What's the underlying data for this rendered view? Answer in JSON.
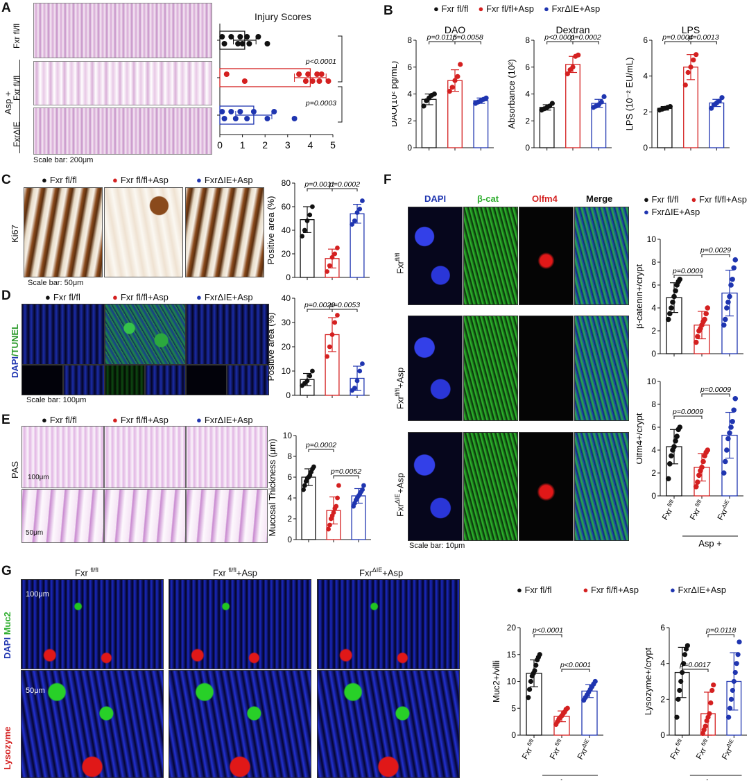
{
  "panels": {
    "a": "A",
    "b": "B",
    "c": "C",
    "d": "D",
    "e": "E",
    "f": "F",
    "g": "G"
  },
  "colors": {
    "control": "#111111",
    "asp": "#d42020",
    "ko": "#1f35b0"
  },
  "groups": {
    "ctrl": "Fxr fl/fl",
    "asp": "Fxr fl/fl+Asp",
    "ko": "FxrΔIE+Asp",
    "ctrl_sup": "fl/fl",
    "ko_sup": "ΔIE",
    "fxr": "Fxr",
    "plus_asp": "+Asp",
    "asp_plus": "Asp +"
  },
  "panel_a": {
    "title": "Injury Scores",
    "row_labels": [
      "Fxr fl/fl",
      "Fxr fl/fl",
      "FxrΔIE"
    ],
    "side_label": "Asp +",
    "scale": "Scale bar: 200μm",
    "pvals": [
      "p<0.0001",
      "p=0.0003"
    ]
  },
  "panel_c": {
    "stain": "Ki67",
    "scale": "Scale bar: 50μm",
    "pvals": [
      "p=0.0011",
      "p=0.0002"
    ],
    "ylabel": "Positive area (%)"
  },
  "panel_d": {
    "stain_a": "DAPI",
    "stain_b": "/TUNEL",
    "scale": "Scale bar: 100μm",
    "pvals": [
      "p=0.0020",
      "p=0.0053"
    ],
    "ylabel": "Positive area (%)"
  },
  "panel_e": {
    "stain": "PAS",
    "scale_top": "100μm",
    "scale_bot": "50μm",
    "pvals": [
      "p=0.0002",
      "p=0.0052"
    ],
    "ylabel": "Mucosal Thickness (μm)"
  },
  "panel_f": {
    "channels": [
      "DAPI",
      "β-cat",
      "Olfm4",
      "Merge"
    ],
    "scale": "Scale bar: 10μm",
    "pvals_bcat": [
      "p=0.0009",
      "p=0.0029"
    ],
    "pvals_olfm": [
      "p=0.0009",
      "p=0.0009"
    ],
    "ylabel_bcat": "β-catenin+/crypt",
    "ylabel_olfm": "Olfm4+/crypt"
  },
  "panel_g": {
    "stain_muc": "Muc2",
    "stain_dapi": "DAPI",
    "stain_lys": "Lysozyme",
    "scale_top": "100μm",
    "scale_bot": "50μm",
    "muc_title": "Muc2",
    "lys_title": "Lysozyme",
    "pvals_muc": [
      "p<0.0001",
      "p<0.0001"
    ],
    "pvals_lys": [
      "p=0.0017",
      "p=0.0118"
    ],
    "ylabel_muc": "Muc2+/villi",
    "ylabel_lys": "Lysozyme+/crypt"
  },
  "panel_b": {
    "dao": {
      "title": "DAO",
      "ylabel": "DAO(10² pg/mL)",
      "pvals": [
        "p=0.0115",
        "p=0.0058"
      ]
    },
    "dex": {
      "title": "Dextran",
      "ylabel": "Absorbance (10²)",
      "pvals": [
        "p<0.0001",
        "p=0.0002"
      ]
    },
    "lps": {
      "title": "LPS",
      "ylabel": "LPS (10⁻² EU/mL)",
      "pvals": [
        "p=0.0004",
        "p=0.0013"
      ]
    }
  },
  "chart_data": [
    {
      "id": "injury",
      "type": "bar",
      "orientation": "horizontal",
      "title": "Injury Scores",
      "xlim": [
        0,
        5
      ],
      "xticks": [
        0,
        1,
        2,
        3,
        4,
        5
      ],
      "series": [
        {
          "name": "Fxr fl/fl",
          "mean": 1.1,
          "sd": 0.5,
          "points": [
            0.1,
            0.2,
            0.5,
            0.8,
            0.9,
            1.0,
            1.2,
            1.3,
            1.7,
            2.1
          ]
        },
        {
          "name": "Fxr fl/fl+Asp",
          "mean": 4.0,
          "sd": 0.7,
          "points": [
            0.3,
            1.1,
            3.5,
            3.8,
            3.9,
            4.1,
            4.3,
            4.4,
            4.5,
            4.8
          ]
        },
        {
          "name": "FxrΔIE+Asp",
          "mean": 1.5,
          "sd": 0.8,
          "points": [
            0.1,
            0.2,
            0.5,
            0.7,
            0.9,
            1.2,
            1.5,
            2.1,
            2.4,
            3.3
          ]
        }
      ]
    },
    {
      "id": "dao",
      "type": "bar",
      "title": "DAO",
      "ylabel": "DAO(10² pg/mL)",
      "ylim": [
        0,
        8
      ],
      "yticks": [
        0,
        2,
        4,
        6,
        8
      ],
      "series": [
        {
          "name": "Fxr fl/fl",
          "mean": 3.6,
          "sd": 0.4,
          "points": [
            3.1,
            3.5,
            3.7,
            3.9,
            4.0
          ]
        },
        {
          "name": "Fxr fl/fl+Asp",
          "mean": 5.0,
          "sd": 0.8,
          "points": [
            4.2,
            4.5,
            5.0,
            5.3,
            6.2
          ]
        },
        {
          "name": "FxrΔIE+Asp",
          "mean": 3.5,
          "sd": 0.2,
          "points": [
            3.3,
            3.4,
            3.5,
            3.6,
            3.7
          ]
        }
      ]
    },
    {
      "id": "dextran",
      "type": "bar",
      "title": "Dextran",
      "ylabel": "Absorbance (10²)",
      "ylim": [
        0,
        8
      ],
      "yticks": [
        0,
        2,
        4,
        6,
        8
      ],
      "series": [
        {
          "name": "Fxr fl/fl",
          "mean": 3.0,
          "sd": 0.2,
          "points": [
            2.8,
            2.9,
            3.0,
            3.1,
            3.3
          ]
        },
        {
          "name": "Fxr fl/fl+Asp",
          "mean": 6.2,
          "sd": 0.6,
          "points": [
            5.5,
            5.8,
            6.0,
            6.8,
            6.9
          ]
        },
        {
          "name": "FxrΔIE+Asp",
          "mean": 3.3,
          "sd": 0.3,
          "points": [
            3.0,
            3.1,
            3.2,
            3.4,
            3.8
          ]
        }
      ]
    },
    {
      "id": "lps",
      "type": "bar",
      "title": "LPS",
      "ylabel": "LPS (10⁻² EU/mL)",
      "ylim": [
        0,
        6
      ],
      "yticks": [
        0,
        2,
        4,
        6
      ],
      "series": [
        {
          "name": "Fxr fl/fl",
          "mean": 2.2,
          "sd": 0.1,
          "points": [
            2.1,
            2.15,
            2.2,
            2.25,
            2.3
          ]
        },
        {
          "name": "Fxr fl/fl+Asp",
          "mean": 4.5,
          "sd": 0.7,
          "points": [
            3.5,
            4.2,
            4.5,
            4.9,
            5.2
          ]
        },
        {
          "name": "FxrΔIE+Asp",
          "mean": 2.5,
          "sd": 0.2,
          "points": [
            2.2,
            2.4,
            2.5,
            2.6,
            2.8
          ]
        }
      ]
    },
    {
      "id": "ki67",
      "type": "bar",
      "ylabel": "Positive area (%)",
      "ylim": [
        0,
        80
      ],
      "yticks": [
        0,
        20,
        40,
        60,
        80
      ],
      "series": [
        {
          "name": "Fxr fl/fl",
          "mean": 49,
          "sd": 11,
          "points": [
            35,
            40,
            48,
            53,
            60
          ]
        },
        {
          "name": "Fxr fl/fl+Asp",
          "mean": 16,
          "sd": 8,
          "points": [
            5,
            10,
            17,
            20,
            25
          ]
        },
        {
          "name": "FxrΔIE+Asp",
          "mean": 54,
          "sd": 8,
          "points": [
            45,
            48,
            55,
            58,
            65
          ]
        }
      ]
    },
    {
      "id": "tunel",
      "type": "bar",
      "ylabel": "Positive area (%)",
      "ylim": [
        0,
        40
      ],
      "yticks": [
        0,
        10,
        20,
        30,
        40
      ],
      "series": [
        {
          "name": "Fxr fl/fl",
          "mean": 6.5,
          "sd": 2.5,
          "points": [
            4,
            5,
            6,
            8,
            10
          ]
        },
        {
          "name": "Fxr fl/fl+Asp",
          "mean": 25,
          "sd": 7,
          "points": [
            16,
            20,
            25,
            30,
            33
          ]
        },
        {
          "name": "FxrΔIE+Asp",
          "mean": 7,
          "sd": 5,
          "points": [
            2,
            3,
            6,
            10,
            13
          ]
        }
      ]
    },
    {
      "id": "mucosal",
      "type": "bar",
      "ylabel": "Mucosal Thickness (μm)",
      "ylim": [
        0,
        10
      ],
      "yticks": [
        0,
        2,
        4,
        6,
        8,
        10
      ],
      "series": [
        {
          "name": "Fxr fl/fl",
          "mean": 6.0,
          "sd": 0.8,
          "points": [
            4.8,
            5.2,
            5.6,
            5.9,
            6.0,
            6.2,
            6.5,
            6.8,
            7.0
          ]
        },
        {
          "name": "Fxr fl/fl+Asp",
          "mean": 2.8,
          "sd": 1.3,
          "points": [
            1.0,
            1.4,
            2.0,
            2.3,
            2.6,
            3.0,
            3.2,
            4.0,
            5.2
          ]
        },
        {
          "name": "FxrΔIE+Asp",
          "mean": 4.2,
          "sd": 0.7,
          "points": [
            3.2,
            3.5,
            3.8,
            4.0,
            4.2,
            4.4,
            4.6,
            4.8,
            5.2
          ]
        }
      ]
    },
    {
      "id": "bcat",
      "type": "bar",
      "ylabel": "β-catenin+/crypt",
      "ylim": [
        0,
        10
      ],
      "yticks": [
        0,
        2,
        4,
        6,
        8,
        10
      ],
      "series": [
        {
          "name": "Fxr fl/fl",
          "mean": 4.9,
          "sd": 1.3,
          "points": [
            3,
            3.5,
            4,
            4.5,
            5,
            5.5,
            6,
            6.3,
            6.5
          ]
        },
        {
          "name": "Fxr fl/fl+Asp",
          "mean": 2.5,
          "sd": 1.2,
          "points": [
            1,
            1.5,
            2,
            2.2,
            2.5,
            2.8,
            3,
            3.5,
            4
          ]
        },
        {
          "name": "FxrΔIE+Asp",
          "mean": 5.3,
          "sd": 2.0,
          "points": [
            2.5,
            3,
            4,
            4.5,
            5,
            6,
            6.5,
            7.5,
            8.2
          ]
        }
      ]
    },
    {
      "id": "olfm4",
      "type": "bar",
      "ylabel": "Olfm4+/crypt",
      "ylim": [
        0,
        10
      ],
      "yticks": [
        0,
        2,
        4,
        6,
        8,
        10
      ],
      "series": [
        {
          "name": "Fxr fl/fl",
          "mean": 4.3,
          "sd": 1.5,
          "points": [
            1.5,
            2.8,
            3.5,
            4,
            4.3,
            4.8,
            5.2,
            5.8,
            6
          ]
        },
        {
          "name": "Fxr fl/fl+Asp",
          "mean": 2.5,
          "sd": 1.2,
          "points": [
            0.8,
            1.2,
            1.8,
            2.2,
            2.5,
            3,
            3.5,
            3.8,
            4
          ]
        },
        {
          "name": "FxrΔIE+Asp",
          "mean": 5.3,
          "sd": 2.0,
          "points": [
            2,
            3,
            4,
            5,
            5.5,
            6,
            6.5,
            7.5,
            8.5
          ]
        }
      ]
    },
    {
      "id": "muc2",
      "type": "bar",
      "title": "Muc2",
      "ylabel": "Muc2+/villi",
      "ylim": [
        0,
        20
      ],
      "yticks": [
        0,
        5,
        10,
        15,
        20
      ],
      "series": [
        {
          "name": "Fxr fl/fl",
          "mean": 11.5,
          "sd": 2.5,
          "points": [
            7,
            8.5,
            10,
            11,
            11.5,
            12,
            13,
            14,
            14.5,
            15
          ]
        },
        {
          "name": "Fxr fl/fl+Asp",
          "mean": 3.5,
          "sd": 1.0,
          "points": [
            2,
            2.5,
            3,
            3.3,
            3.6,
            4,
            4.3,
            4.8,
            5
          ]
        },
        {
          "name": "FxrΔIE+Asp",
          "mean": 8.2,
          "sd": 1.2,
          "points": [
            6.5,
            7,
            7.5,
            8,
            8.5,
            9,
            9.5,
            10
          ]
        }
      ]
    },
    {
      "id": "lysozyme",
      "type": "bar",
      "title": "Lysozyme",
      "ylabel": "Lysozyme+/crypt",
      "ylim": [
        0,
        6
      ],
      "yticks": [
        0,
        2,
        4,
        6
      ],
      "series": [
        {
          "name": "Fxr fl/fl",
          "mean": 3.5,
          "sd": 1.4,
          "points": [
            1,
            2,
            2.5,
            3,
            3.5,
            4,
            4.5,
            4.8,
            5
          ]
        },
        {
          "name": "Fxr fl/fl+Asp",
          "mean": 1.2,
          "sd": 1.2,
          "points": [
            0.1,
            0.3,
            0.5,
            0.8,
            1,
            1.2,
            1.8,
            2.5,
            2.8
          ]
        },
        {
          "name": "FxrΔIE+Asp",
          "mean": 3.0,
          "sd": 1.6,
          "points": [
            1,
            1.5,
            2,
            2.5,
            3,
            3.5,
            4,
            4.5,
            5.2
          ]
        }
      ]
    }
  ]
}
